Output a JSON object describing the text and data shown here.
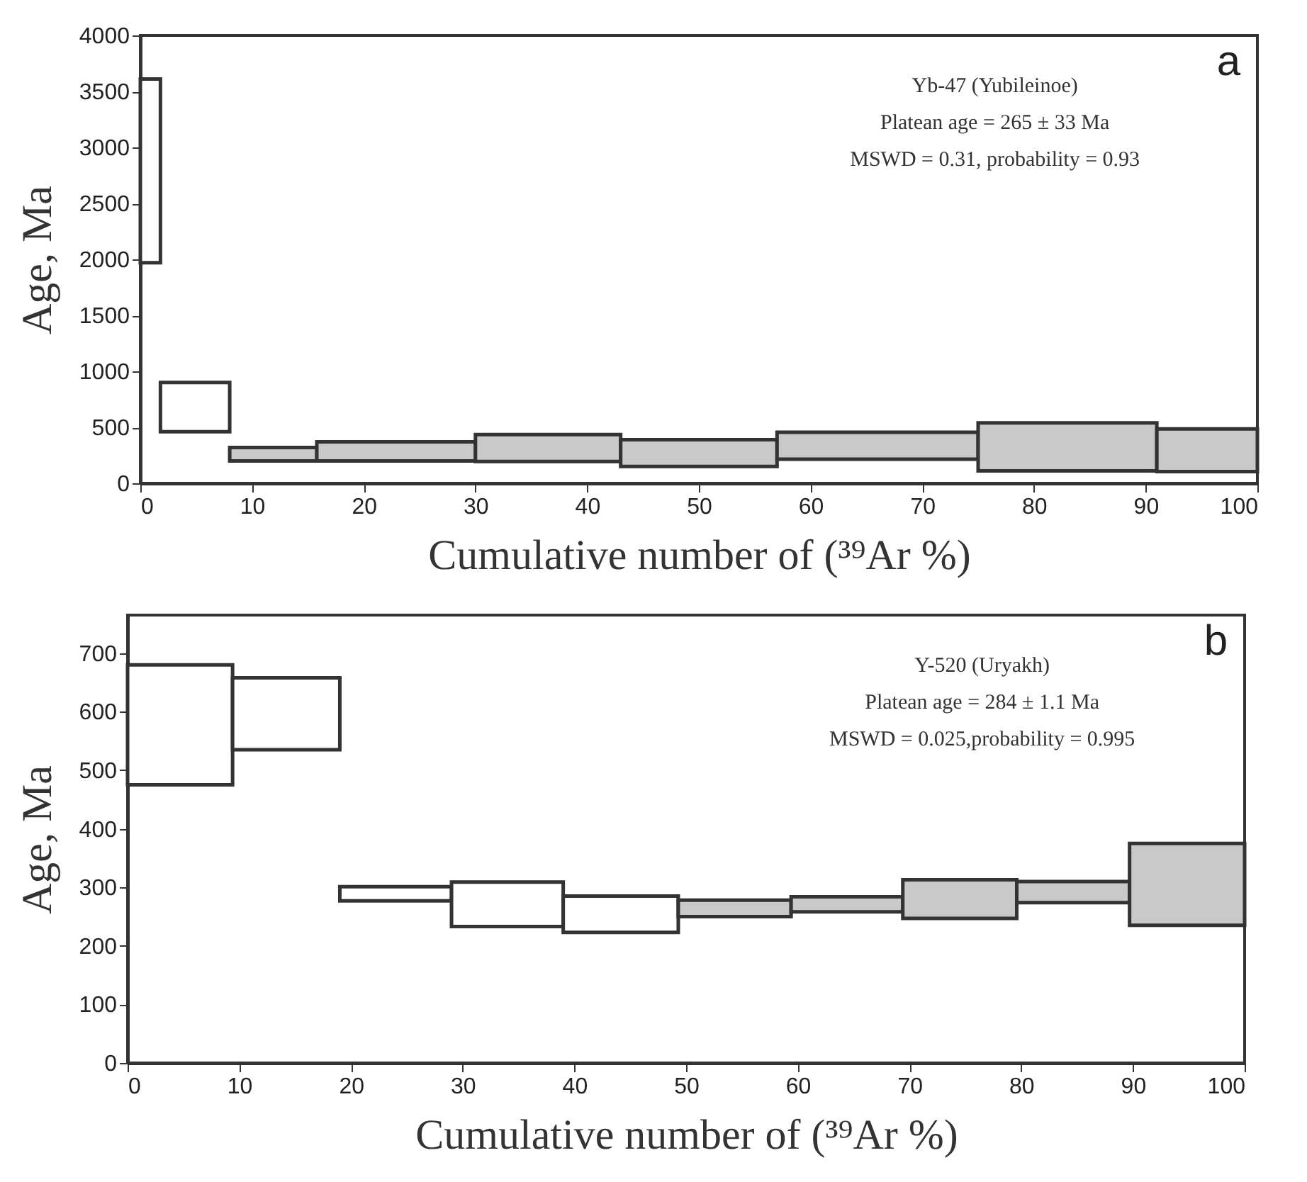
{
  "chart_data": [
    {
      "type": "histogram",
      "bins": [
        0,
        1.8,
        8,
        15.8,
        30,
        43,
        57,
        75,
        91,
        100
      ],
      "values": [
        1640,
        440,
        120,
        170,
        240,
        240,
        240,
        430,
        380
      ],
      "base": [
        1970,
        460,
        200,
        200,
        195,
        150,
        215,
        110,
        105
      ],
      "colors": [
        "#ffffff",
        "#ffffff",
        "#c8c9c8",
        "#c8c9c8",
        "#c8c9c8",
        "#c8c9c8",
        "#c8c9c8",
        "#c8c9c8",
        "#c8c9c8"
      ],
      "xlabel": "Cumulative number of (³⁹Ar %)",
      "ylabel": "Age, Ma",
      "xlim": [
        0,
        100
      ],
      "xticks": [
        0,
        10,
        20,
        30,
        40,
        50,
        60,
        70,
        80,
        90,
        100
      ],
      "ylim": [
        0,
        4000
      ],
      "yticks": [
        0,
        500,
        1000,
        1500,
        2000,
        2500,
        3000,
        3500,
        4000
      ],
      "annotations": [
        "a",
        "Yb-47 (Yubileinoe)",
        "Platean age = 265 ± 33 Ma",
        "MSWD = 0.31, probability = 0.93"
      ]
    },
    {
      "type": "histogram",
      "bins": [
        0,
        9.4,
        19,
        29,
        39,
        49.3,
        59.4,
        69.4,
        79.6,
        89.7,
        100
      ],
      "values": [
        205,
        123,
        24,
        76,
        62,
        28,
        26,
        66,
        36,
        140
      ],
      "base": [
        475,
        535,
        277,
        233,
        223,
        250,
        258,
        247,
        274,
        235
      ],
      "colors": [
        "#ffffff",
        "#ffffff",
        "#ffffff",
        "#ffffff",
        "#ffffff",
        "#c8c9c8",
        "#c8c9c8",
        "#c8c9c8",
        "#c8c9c8",
        "#c8c9c8"
      ],
      "xlabel": "Cumulative number of (³⁹Ar %)",
      "ylabel": "Age, Ma",
      "xlim": [
        0,
        100
      ],
      "xticks": [
        0,
        10,
        20,
        30,
        40,
        50,
        60,
        70,
        80,
        90,
        100
      ],
      "ylim": [
        0,
        765
      ],
      "yticks": [
        0,
        100,
        200,
        300,
        400,
        500,
        600,
        700
      ],
      "annotations": [
        "b",
        "Y-520 (Uryakh)",
        "Platean age = 284 ± 1.1 Ma",
        "MSWD = 0.025,probability = 0.995"
      ]
    }
  ]
}
